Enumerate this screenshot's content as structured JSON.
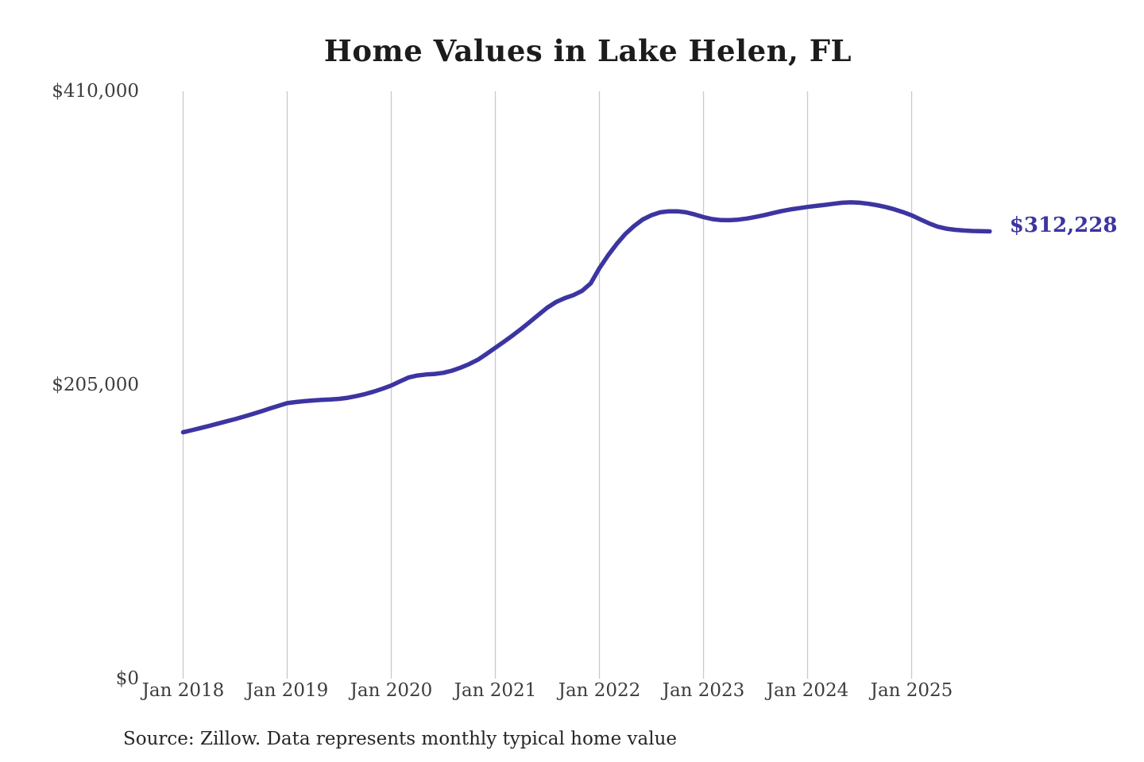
{
  "title": "Home Values in Lake Helen, FL",
  "source_note": "Source: Zillow. Data represents monthly typical home value",
  "end_label": "$312,228",
  "colors": {
    "line": "#3c35a1",
    "annotation": "#3c35a1",
    "grid": "#c9c9c9",
    "axis_text": "#3d3d3d",
    "title_text": "#1c1c1c",
    "source_text": "#262626",
    "background": "#ffffff"
  },
  "chart_data": {
    "type": "line",
    "title": "Home Values in Lake Helen, FL",
    "xlabel": "",
    "ylabel": "",
    "x_tick_labels": [
      "Jan 2018",
      "Jan 2019",
      "Jan 2020",
      "Jan 2021",
      "Jan 2022",
      "Jan 2023",
      "Jan 2024",
      "Jan 2025"
    ],
    "y_tick_labels": [
      "$0",
      "$205,000",
      "$410,000"
    ],
    "y_tick_values": [
      0,
      205000,
      410000
    ],
    "ylim": [
      0,
      410000
    ],
    "grid": "vertical-only",
    "legend_position": "none",
    "x_start_month": "2018-01",
    "x_end_month": "2025-10",
    "end_value": 312228,
    "series": [
      {
        "name": "Monthly typical home value (USD)",
        "monthly_values": [
          172000,
          173400,
          174900,
          176400,
          178000,
          179600,
          181200,
          182900,
          184700,
          186600,
          188600,
          190500,
          192300,
          193100,
          193700,
          194200,
          194600,
          194900,
          195300,
          196100,
          197300,
          198700,
          200400,
          202400,
          204600,
          207500,
          210200,
          211600,
          212300,
          212700,
          213500,
          215000,
          217100,
          219600,
          222700,
          226700,
          231000,
          235200,
          239600,
          244200,
          249100,
          254100,
          259000,
          262900,
          265600,
          267700,
          270700,
          276000,
          286500,
          295500,
          303500,
          310500,
          316000,
          320500,
          323500,
          325500,
          326200,
          326200,
          325500,
          324000,
          322200,
          320800,
          320100,
          320000,
          320400,
          321200,
          322300,
          323500,
          325000,
          326400,
          327500,
          328400,
          329300,
          330000,
          330700,
          331500,
          332200,
          332500,
          332200,
          331500,
          330500,
          329200,
          327600,
          325700,
          323400,
          320600,
          317800,
          315500,
          314100,
          313300,
          312800,
          312500,
          312300,
          312228
        ]
      }
    ]
  }
}
